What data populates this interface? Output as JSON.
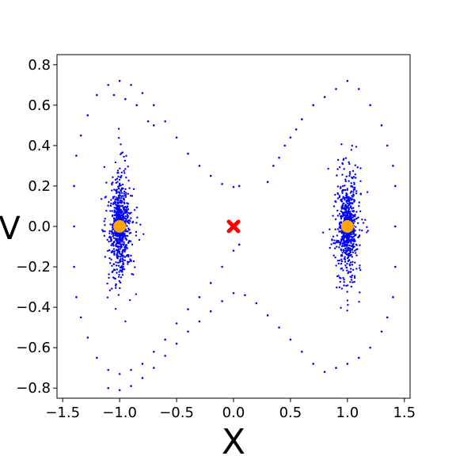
{
  "chart_data": {
    "type": "scatter",
    "title": "",
    "xlabel": "X",
    "ylabel": "V",
    "xlim": [
      -1.55,
      1.55
    ],
    "ylim": [
      -0.85,
      0.85
    ],
    "xticks": [
      {
        "value": -1.5,
        "label": "−1.5"
      },
      {
        "value": -1.0,
        "label": "−1.0"
      },
      {
        "value": -0.5,
        "label": "−0.5"
      },
      {
        "value": 0.0,
        "label": "0.0"
      },
      {
        "value": 0.5,
        "label": "0.5"
      },
      {
        "value": 1.0,
        "label": "1.0"
      },
      {
        "value": 1.5,
        "label": "1.5"
      }
    ],
    "yticks": [
      {
        "value": 0.8,
        "label": "0.8"
      },
      {
        "value": 0.6,
        "label": "0.6"
      },
      {
        "value": 0.4,
        "label": "0.4"
      },
      {
        "value": 0.2,
        "label": "0.2"
      },
      {
        "value": 0.0,
        "label": "0.0"
      },
      {
        "value": -0.2,
        "label": "−0.2"
      },
      {
        "value": -0.4,
        "label": "−0.4"
      },
      {
        "value": -0.6,
        "label": "−0.6"
      },
      {
        "value": -0.8,
        "label": "−0.8"
      }
    ],
    "grid": false,
    "colors": {
      "points": "#0000ff",
      "stable_fixed_points": "#ffa500",
      "saddle_point": "#ff0000"
    },
    "series": [
      {
        "kind": "poincare-points",
        "color": "#0000ff",
        "points": [
          [
            -1.4,
            -0.2
          ],
          [
            -1.4,
            0.0
          ],
          [
            -1.4,
            0.2
          ],
          [
            -1.38,
            -0.35
          ],
          [
            -1.38,
            0.35
          ],
          [
            -1.34,
            -0.45
          ],
          [
            -1.34,
            0.45
          ],
          [
            -1.28,
            -0.55
          ],
          [
            -1.28,
            0.55
          ],
          [
            -1.2,
            -0.65
          ],
          [
            -1.2,
            0.65
          ],
          [
            -1.1,
            -0.71
          ],
          [
            -1.1,
            0.7
          ],
          [
            -1.0,
            -0.73
          ],
          [
            -1.0,
            0.72
          ],
          [
            -0.9,
            -0.71
          ],
          [
            -0.9,
            0.7
          ],
          [
            -0.8,
            -0.68
          ],
          [
            -0.8,
            0.66
          ],
          [
            -0.7,
            -0.62
          ],
          [
            -0.7,
            0.6
          ],
          [
            -0.6,
            -0.56
          ],
          [
            -0.6,
            0.52
          ],
          [
            -0.5,
            -0.48
          ],
          [
            -0.5,
            0.44
          ],
          [
            -0.4,
            -0.41
          ],
          [
            -0.4,
            0.36
          ],
          [
            -0.3,
            -0.35
          ],
          [
            -0.3,
            0.3
          ],
          [
            -0.2,
            -0.28
          ],
          [
            -0.2,
            0.25
          ],
          [
            -0.1,
            -0.2
          ],
          [
            -0.1,
            0.21
          ],
          [
            0.0,
            -0.12
          ],
          [
            0.0,
            0.195
          ],
          [
            0.05,
            -0.09
          ],
          [
            0.05,
            0.2
          ],
          [
            -1.1,
            -0.8
          ],
          [
            -1.0,
            -0.81
          ],
          [
            -0.9,
            -0.79
          ],
          [
            -0.8,
            -0.75
          ],
          [
            -0.7,
            -0.7
          ],
          [
            -0.6,
            -0.64
          ],
          [
            -0.5,
            -0.58
          ],
          [
            -0.4,
            -0.52
          ],
          [
            -0.3,
            -0.47
          ],
          [
            -0.2,
            -0.42
          ],
          [
            -0.1,
            -0.37
          ],
          [
            0.0,
            -0.33
          ],
          [
            0.1,
            -0.34
          ],
          [
            0.2,
            -0.38
          ],
          [
            0.3,
            -0.44
          ],
          [
            0.4,
            -0.5
          ],
          [
            0.5,
            -0.56
          ],
          [
            0.6,
            -0.62
          ],
          [
            0.7,
            -0.68
          ],
          [
            -1.05,
            0.65
          ],
          [
            -0.95,
            0.63
          ],
          [
            -0.85,
            0.6
          ],
          [
            -0.75,
            0.52
          ],
          [
            -0.7,
            0.5
          ],
          [
            0.3,
            0.22
          ],
          [
            0.35,
            0.3
          ],
          [
            0.4,
            0.34
          ],
          [
            0.45,
            0.4
          ],
          [
            0.5,
            0.44
          ],
          [
            0.55,
            0.48
          ],
          [
            0.6,
            0.53
          ],
          [
            0.7,
            0.6
          ],
          [
            0.8,
            0.64
          ],
          [
            0.9,
            0.68
          ],
          [
            1.0,
            0.72
          ],
          [
            1.1,
            0.68
          ],
          [
            1.2,
            0.6
          ],
          [
            1.3,
            0.5
          ],
          [
            1.35,
            0.4
          ],
          [
            1.4,
            0.3
          ],
          [
            1.42,
            0.2
          ],
          [
            1.42,
            0.0
          ],
          [
            1.42,
            -0.2
          ],
          [
            1.4,
            -0.35
          ],
          [
            1.35,
            -0.45
          ],
          [
            1.3,
            -0.52
          ],
          [
            1.2,
            -0.6
          ],
          [
            1.1,
            -0.65
          ],
          [
            1.0,
            -0.68
          ],
          [
            0.9,
            -0.7
          ],
          [
            0.8,
            -0.72
          ]
        ],
        "clusters": [
          {
            "center": [
              -1.0,
              0.0
            ],
            "x_halfwidth": 0.2,
            "y_halfwidth": 0.5
          },
          {
            "center": [
              1.0,
              0.0
            ],
            "x_halfwidth": 0.2,
            "y_halfwidth": 0.5
          }
        ]
      },
      {
        "kind": "stable-fixed-points",
        "color": "#ffa500",
        "points": [
          [
            -1.0,
            0.0
          ],
          [
            1.0,
            0.0
          ]
        ]
      },
      {
        "kind": "saddle-point",
        "color": "#ff0000",
        "points": [
          [
            0.0,
            0.0
          ]
        ]
      }
    ]
  }
}
